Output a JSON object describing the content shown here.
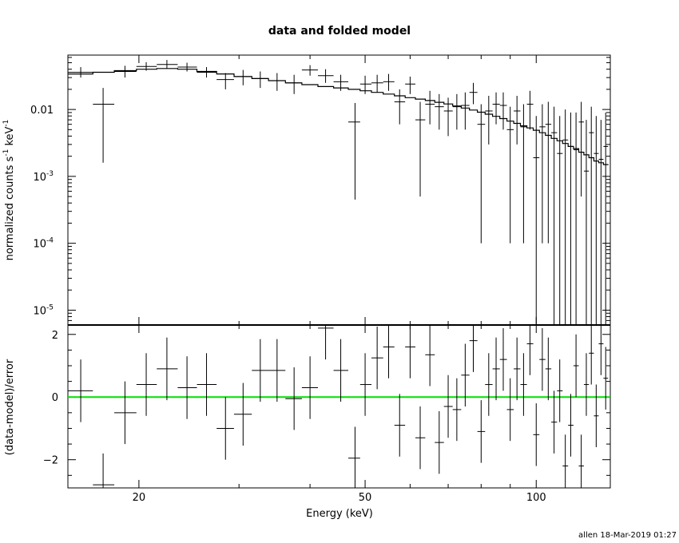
{
  "colors": {
    "axes": "#000000",
    "data": "#000000",
    "model": "#000000",
    "zero_line": "#00e000"
  },
  "chart_data": [
    {
      "type": "scatter",
      "panel": "top",
      "title": "data and folded model",
      "ylabel": "normalized counts s⁻¹ keV⁻¹",
      "ylabel_parts": [
        "normalized counts s",
        "-1",
        " keV",
        "-1"
      ],
      "xlabel": "",
      "xscale": "log",
      "yscale": "log",
      "xlim": [
        15,
        135
      ],
      "ylim": [
        6e-06,
        0.065
      ],
      "yticks": [
        {
          "value": 0.01,
          "label": "0.01",
          "base": "0.01",
          "exp": ""
        },
        {
          "value": 0.001,
          "label": "10⁻³",
          "base": "10",
          "exp": "-3"
        },
        {
          "value": 0.0001,
          "label": "10⁻⁴",
          "base": "10",
          "exp": "-4"
        },
        {
          "value": 1e-05,
          "label": "10⁻⁵",
          "base": "10",
          "exp": "-5"
        }
      ],
      "series": [
        {
          "kind": "data_with_errors",
          "x": [
            15.8,
            17.3,
            18.9,
            20.6,
            22.4,
            24.3,
            26.3,
            28.4,
            30.5,
            32.7,
            35.0,
            37.5,
            40.0,
            42.6,
            45.3,
            48.0,
            50.0,
            52.5,
            55.0,
            57.5,
            60.0,
            62.5,
            65.0,
            67.5,
            70.0,
            72.5,
            75.0,
            77.5,
            80.0,
            82.5,
            85.0,
            87.5,
            90.0,
            92.5,
            95.0,
            97.5,
            100.0,
            102.5,
            105.0,
            107.5,
            110.0,
            112.5,
            115.0,
            117.5,
            120.0,
            122.5,
            125.0,
            127.5,
            130.0,
            132.5
          ],
          "x_lo": [
            15.0,
            16.6,
            18.1,
            19.8,
            21.5,
            23.4,
            25.3,
            27.4,
            29.4,
            31.6,
            33.8,
            36.2,
            38.7,
            41.3,
            44.0,
            46.7,
            49.0,
            51.3,
            53.8,
            56.3,
            58.8,
            61.3,
            63.8,
            66.3,
            68.8,
            71.3,
            73.8,
            76.3,
            78.8,
            81.3,
            83.8,
            86.3,
            88.8,
            91.3,
            93.8,
            96.3,
            98.8,
            101.3,
            103.8,
            106.3,
            108.8,
            111.3,
            113.8,
            116.3,
            118.8,
            121.3,
            123.8,
            126.3,
            128.8,
            131.3
          ],
          "x_hi": [
            16.6,
            18.1,
            19.8,
            21.5,
            23.4,
            25.3,
            27.4,
            29.4,
            31.6,
            33.8,
            36.2,
            38.7,
            41.3,
            44.0,
            46.7,
            49.0,
            51.3,
            53.8,
            56.3,
            58.8,
            61.3,
            63.8,
            66.3,
            68.8,
            71.3,
            73.8,
            76.3,
            78.8,
            81.3,
            83.8,
            86.3,
            88.8,
            91.3,
            93.8,
            96.3,
            98.8,
            101.3,
            103.8,
            106.3,
            108.8,
            111.3,
            113.8,
            116.3,
            118.8,
            121.3,
            123.8,
            126.3,
            128.8,
            131.3,
            133.8
          ],
          "y": [
            0.036,
            0.012,
            0.037,
            0.044,
            0.047,
            0.043,
            0.036,
            0.028,
            0.031,
            0.029,
            0.027,
            0.025,
            0.039,
            0.032,
            0.026,
            0.0065,
            0.024,
            0.025,
            0.026,
            0.013,
            0.024,
            0.007,
            0.012,
            0.011,
            0.0095,
            0.011,
            0.0115,
            0.018,
            0.006,
            0.0095,
            0.012,
            0.0115,
            0.005,
            0.0095,
            0.0055,
            0.012,
            0.0019,
            0.0055,
            0.006,
            0.0045,
            0.0022,
            0.0035,
            0.0028,
            0.0025,
            0.0065,
            0.0012,
            0.0045,
            0.0022,
            0.0018,
            0.0028
          ],
          "y_lo": [
            0.03,
            0.0016,
            0.03,
            0.038,
            0.041,
            0.037,
            0.03,
            0.02,
            0.023,
            0.021,
            0.019,
            0.017,
            0.032,
            0.025,
            0.019,
            0.00045,
            0.017,
            0.018,
            0.019,
            0.006,
            0.017,
            0.0005,
            0.006,
            0.005,
            0.004,
            0.005,
            0.005,
            0.012,
            0.0001,
            0.003,
            0.006,
            0.005,
            0.0001,
            0.003,
            0.0001,
            0.005,
            6e-06,
            0.0001,
            0.0001,
            6e-06,
            6e-06,
            6e-06,
            6e-06,
            6e-06,
            0.0005,
            6e-06,
            6e-06,
            6e-06,
            6e-06,
            6e-06
          ],
          "y_hi": [
            0.043,
            0.021,
            0.045,
            0.051,
            0.055,
            0.05,
            0.043,
            0.035,
            0.039,
            0.037,
            0.035,
            0.033,
            0.046,
            0.04,
            0.033,
            0.0125,
            0.032,
            0.033,
            0.034,
            0.02,
            0.031,
            0.013,
            0.019,
            0.017,
            0.015,
            0.017,
            0.018,
            0.025,
            0.012,
            0.016,
            0.018,
            0.018,
            0.011,
            0.016,
            0.012,
            0.019,
            0.008,
            0.012,
            0.013,
            0.011,
            0.008,
            0.01,
            0.009,
            0.009,
            0.013,
            0.007,
            0.011,
            0.008,
            0.007,
            0.009
          ]
        },
        {
          "kind": "model_step",
          "x_edges": [
            15.0,
            16.6,
            18.1,
            19.8,
            21.5,
            23.4,
            25.3,
            27.4,
            29.4,
            31.6,
            33.8,
            36.2,
            38.7,
            41.3,
            44.0,
            46.7,
            49.0,
            51.3,
            53.8,
            56.3,
            58.8,
            61.3,
            63.8,
            66.3,
            68.8,
            71.3,
            73.8,
            76.3,
            78.8,
            81.3,
            83.8,
            86.3,
            88.8,
            91.3,
            93.8,
            96.3,
            98.8,
            101.3,
            103.8,
            106.3,
            108.8,
            111.3,
            113.8,
            116.3,
            118.8,
            121.3,
            123.8,
            126.3,
            128.8,
            131.3,
            134.0
          ],
          "y": [
            0.034,
            0.036,
            0.038,
            0.04,
            0.041,
            0.04,
            0.037,
            0.034,
            0.031,
            0.029,
            0.027,
            0.025,
            0.0235,
            0.022,
            0.021,
            0.02,
            0.019,
            0.018,
            0.017,
            0.016,
            0.015,
            0.0143,
            0.0136,
            0.0128,
            0.0121,
            0.0113,
            0.0105,
            0.0098,
            0.0091,
            0.0085,
            0.0079,
            0.0073,
            0.0067,
            0.0062,
            0.0057,
            0.0053,
            0.0049,
            0.0045,
            0.0041,
            0.0037,
            0.0034,
            0.0031,
            0.0028,
            0.0026,
            0.0023,
            0.0021,
            0.0019,
            0.0017,
            0.0016,
            0.0015
          ]
        }
      ]
    },
    {
      "type": "scatter",
      "panel": "bottom",
      "xlabel": "Energy (keV)",
      "ylabel": "(data-model)/error",
      "xscale": "log",
      "yscale": "linear",
      "xlim": [
        15,
        135
      ],
      "ylim": [
        -2.9,
        2.3
      ],
      "xticks": [
        {
          "value": 20,
          "label": "20"
        },
        {
          "value": 50,
          "label": "50"
        },
        {
          "value": 100,
          "label": "100"
        }
      ],
      "yticks": [
        {
          "value": 2,
          "label": "2"
        },
        {
          "value": 0,
          "label": "0"
        },
        {
          "value": -2,
          "label": "−2"
        }
      ],
      "zero_line": 0,
      "series": [
        {
          "kind": "residuals",
          "x": [
            15.8,
            17.3,
            18.9,
            20.6,
            22.4,
            24.3,
            26.3,
            28.4,
            30.5,
            32.7,
            35.0,
            37.5,
            40.0,
            42.6,
            45.3,
            48.0,
            50.0,
            52.5,
            55.0,
            57.5,
            60.0,
            62.5,
            65.0,
            67.5,
            70.0,
            72.5,
            75.0,
            77.5,
            80.0,
            82.5,
            85.0,
            87.5,
            90.0,
            92.5,
            95.0,
            97.5,
            100.0,
            102.5,
            105.0,
            107.5,
            110.0,
            112.5,
            115.0,
            117.5,
            120.0,
            122.5,
            125.0,
            127.5,
            130.0,
            132.5
          ],
          "x_lo": [
            15.0,
            16.6,
            18.1,
            19.8,
            21.5,
            23.4,
            25.3,
            27.4,
            29.4,
            31.6,
            33.8,
            36.2,
            38.7,
            41.3,
            44.0,
            46.7,
            49.0,
            51.3,
            53.8,
            56.3,
            58.8,
            61.3,
            63.8,
            66.3,
            68.8,
            71.3,
            73.8,
            76.3,
            78.8,
            81.3,
            83.8,
            86.3,
            88.8,
            91.3,
            93.8,
            96.3,
            98.8,
            101.3,
            103.8,
            106.3,
            108.8,
            111.3,
            113.8,
            116.3,
            118.8,
            121.3,
            123.8,
            126.3,
            128.8,
            131.3
          ],
          "x_hi": [
            16.6,
            18.1,
            19.8,
            21.5,
            23.4,
            25.3,
            27.4,
            29.4,
            31.6,
            33.8,
            36.2,
            38.7,
            41.3,
            44.0,
            46.7,
            49.0,
            51.3,
            53.8,
            56.3,
            58.8,
            61.3,
            63.8,
            66.3,
            68.8,
            71.3,
            73.8,
            76.3,
            78.8,
            81.3,
            83.8,
            86.3,
            88.8,
            91.3,
            93.8,
            96.3,
            98.8,
            101.3,
            103.8,
            106.3,
            108.8,
            111.3,
            113.8,
            116.3,
            118.8,
            121.3,
            123.8,
            126.3,
            128.8,
            131.3,
            133.8
          ],
          "y": [
            0.2,
            -2.8,
            -0.5,
            0.4,
            0.9,
            0.3,
            0.4,
            -1.0,
            -0.55,
            0.85,
            0.85,
            -0.05,
            0.3,
            2.2,
            0.85,
            -1.95,
            0.4,
            1.25,
            1.6,
            -0.9,
            1.6,
            -1.3,
            1.35,
            -1.45,
            -0.3,
            -0.4,
            0.7,
            1.8,
            -1.1,
            0.4,
            0.9,
            1.2,
            -0.4,
            0.9,
            0.4,
            1.7,
            -1.2,
            1.2,
            0.9,
            -0.8,
            0.2,
            -2.2,
            -0.9,
            1.0,
            -2.2,
            0.4,
            1.4,
            -0.6,
            1.7,
            0.6
          ],
          "err": [
            1.0,
            1.0,
            1.0,
            1.0,
            1.0,
            1.0,
            1.0,
            1.0,
            1.0,
            1.0,
            1.0,
            1.0,
            1.0,
            1.0,
            1.0,
            1.0,
            1.0,
            1.0,
            1.0,
            1.0,
            1.0,
            1.0,
            1.0,
            1.0,
            1.0,
            1.0,
            1.0,
            1.0,
            1.0,
            1.0,
            1.0,
            1.0,
            1.0,
            1.0,
            1.0,
            1.0,
            1.0,
            1.0,
            1.0,
            1.0,
            1.0,
            1.0,
            1.0,
            1.0,
            1.0,
            1.0,
            1.0,
            1.0,
            1.0,
            1.0
          ]
        }
      ]
    }
  ],
  "footer": {
    "stamp": "allen 18-Mar-2019 01:27"
  }
}
